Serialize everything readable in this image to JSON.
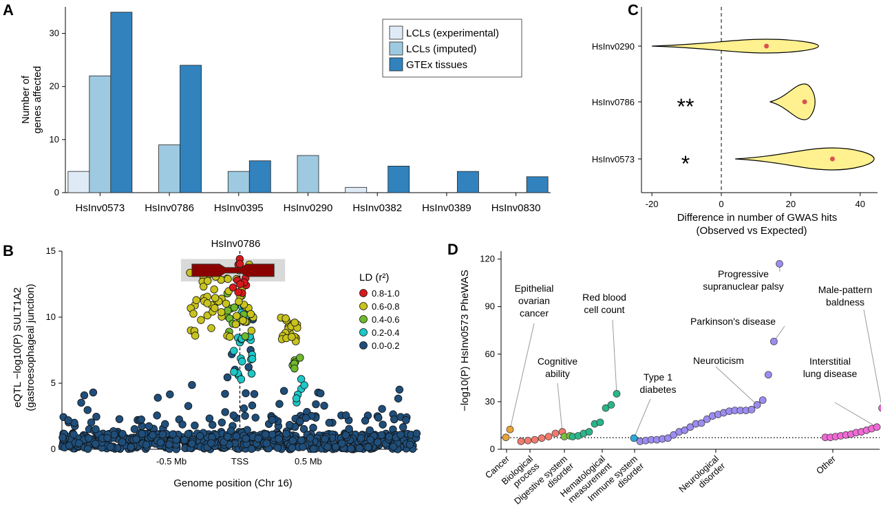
{
  "panels": {
    "A": "A",
    "B": "B",
    "C": "C",
    "D": "D"
  },
  "chart_data": [
    {
      "id": "A",
      "type": "bar",
      "ylabel": "Number of\ngenes affected",
      "ylim": [
        0,
        35
      ],
      "yticks": [
        0,
        10,
        20,
        30
      ],
      "categories": [
        "HsInv0573",
        "HsInv0786",
        "HsInv0395",
        "HsInv0290",
        "HsInv0382",
        "HsInv0389",
        "HsInv0830"
      ],
      "series": [
        {
          "name": "LCLs (experimental)",
          "color": "#deebf7",
          "values": [
            4,
            0,
            0,
            0,
            1,
            0,
            0
          ]
        },
        {
          "name": "LCLs (imputed)",
          "color": "#9ecae1",
          "values": [
            22,
            9,
            4,
            7,
            0,
            0,
            0
          ]
        },
        {
          "name": "GTEx tissues",
          "color": "#3182bd",
          "values": [
            34,
            24,
            6,
            0,
            5,
            4,
            3
          ]
        }
      ],
      "legend_position": "top-right"
    },
    {
      "id": "B",
      "type": "scatter",
      "title": "HsInv0786",
      "xlabel": "Genome position (Chr 16)",
      "ylabel": "eQTL −log10(P) SULT1A2",
      "ylabel2": "(gastroesophageal junction)",
      "ylim": [
        0,
        15
      ],
      "yticks": [
        0,
        5,
        10,
        15
      ],
      "xticks": [
        "-0.5 Mb",
        "TSS",
        "0.5 Mb"
      ],
      "xtick_values": [
        -0.5,
        0,
        0.5
      ],
      "xlim": [
        -1.3,
        1.3
      ],
      "legend_title": "LD (r²)",
      "legend": [
        {
          "label": "0.8-1.0",
          "color": "#d7191c"
        },
        {
          "label": "0.6-0.8",
          "color": "#c8c31d"
        },
        {
          "label": "0.4-0.6",
          "color": "#6fba2c"
        },
        {
          "label": "0.2-0.4",
          "color": "#1fc6c6"
        },
        {
          "label": "0.0-0.2",
          "color": "#1f4e7a"
        }
      ],
      "inversion_region": [
        -0.35,
        0.25
      ],
      "clusters": [
        {
          "ld": "0.8-1.0",
          "x_range": [
            -0.05,
            0.05
          ],
          "y_range": [
            11.5,
            14.6
          ],
          "n": 12
        },
        {
          "ld": "0.6-0.8",
          "x_range": [
            -0.38,
            0.1
          ],
          "y_range": [
            8.5,
            14
          ],
          "n": 60
        },
        {
          "ld": "0.6-0.8",
          "x_range": [
            0.3,
            0.42
          ],
          "y_range": [
            8.0,
            10.0
          ],
          "n": 20
        },
        {
          "ld": "0.4-0.6",
          "x_range": [
            -0.1,
            0.05
          ],
          "y_range": [
            8.5,
            12
          ],
          "n": 15
        },
        {
          "ld": "0.4-0.6",
          "x_range": [
            0.38,
            0.45
          ],
          "y_range": [
            6.0,
            7.0
          ],
          "n": 6
        },
        {
          "ld": "0.2-0.4",
          "x_range": [
            -0.05,
            0.1
          ],
          "y_range": [
            5.0,
            11
          ],
          "n": 25
        },
        {
          "ld": "0.2-0.4",
          "x_range": [
            0.4,
            0.48
          ],
          "y_range": [
            3.5,
            5.8
          ],
          "n": 6
        },
        {
          "ld": "0.0-0.2",
          "x_range": [
            -1.3,
            1.3
          ],
          "y_range": [
            0,
            3
          ],
          "n": 700
        }
      ]
    },
    {
      "id": "C",
      "type": "violin",
      "xlabel": "Difference in number of GWAS hits",
      "xlabel2": "(Observed vs Expected)",
      "xlim": [
        -23,
        45
      ],
      "xticks": [
        -20,
        0,
        20,
        40
      ],
      "categories": [
        "HsInv0290",
        "HsInv0786",
        "HsInv0573"
      ],
      "medians": [
        13,
        24,
        32
      ],
      "ranges": [
        [
          -20,
          28
        ],
        [
          14,
          27
        ],
        [
          4,
          44
        ]
      ],
      "significance": [
        "",
        "**",
        "*"
      ],
      "fill_color": "#fff18f",
      "median_color": "#d9534f"
    },
    {
      "id": "D",
      "type": "scatter",
      "ylabel": "−log10(P) HsInv0573 PheWAS",
      "ylim": [
        0,
        125
      ],
      "yticks": [
        0,
        30,
        60,
        90,
        120
      ],
      "threshold": 7.3,
      "groups": [
        {
          "name": "Cancer",
          "color": "#e8a33a",
          "values": [
            7.5,
            12.5
          ]
        },
        {
          "name": "Biological process",
          "color": "#f07b6c",
          "values": [
            5,
            5.5,
            6,
            7,
            8,
            10,
            11
          ]
        },
        {
          "name": "Digestive system disorder",
          "color": "#7ac143",
          "values": [
            8.5,
            8
          ]
        },
        {
          "name": "Hematological measurement",
          "color": "#2ab58a",
          "values": [
            8,
            8.5,
            10,
            11,
            16,
            17,
            26,
            28,
            35
          ]
        },
        {
          "name": "Immune system disorder",
          "color": "#2aa9d8",
          "values": [
            7
          ]
        },
        {
          "name": "Neurological disorder",
          "color": "#9c8cf0",
          "values": [
            5,
            5.5,
            6,
            6,
            6.5,
            7,
            9,
            11,
            12,
            14,
            16,
            16.5,
            19,
            21,
            22,
            23,
            24,
            24.5,
            24.5,
            24.5,
            25,
            28,
            31,
            47,
            68,
            117
          ]
        },
        {
          "name": "Other",
          "color": "#f06ad6",
          "values": [
            7.5,
            7.5,
            8,
            8.5,
            9,
            9.5,
            10.5,
            11,
            12,
            13,
            14,
            26
          ]
        }
      ],
      "annotations": [
        "Epithelial\novarian\ncancer",
        "Cognitive\nability",
        "Red blood\ncell count",
        "Type 1\ndiabetes",
        "Neuroticism",
        "Progressive\nsupranuclear palsy",
        "Parkinson's disease",
        "Interstitial\nlung disease",
        "Male-pattern\nbaldness"
      ]
    }
  ]
}
